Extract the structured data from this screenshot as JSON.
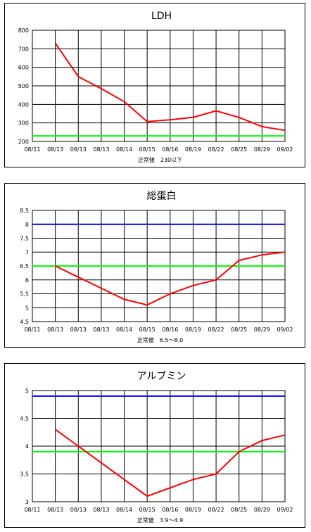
{
  "chart_data": [
    {
      "type": "line",
      "title": "LDH",
      "categories": [
        "08/11",
        "08/13",
        "08/13",
        "08/13",
        "08/14",
        "08/15",
        "08/16",
        "08/19",
        "08/22",
        "08/25",
        "08/29",
        "09/02"
      ],
      "yticks": [
        "800",
        "700",
        "600",
        "500",
        "400",
        "300",
        "200"
      ],
      "ylim": [
        200,
        800
      ],
      "series": [
        {
          "values": [
            null,
            730,
            550,
            485,
            415,
            307,
            317,
            330,
            365,
            330,
            280,
            260
          ],
          "color": "#ff0000"
        }
      ],
      "ref_lines": [
        {
          "value": 230,
          "color": "#00ff00"
        }
      ],
      "note": "正常値　230以下",
      "grid": true
    },
    {
      "type": "line",
      "title": "総蛋白",
      "categories": [
        "08/11",
        "08/13",
        "08/13",
        "08/13",
        "08/14",
        "08/15",
        "08/16",
        "08/19",
        "08/22",
        "08/25",
        "08/29",
        "09/02"
      ],
      "yticks": [
        "8.5",
        "8",
        "7.5",
        "7",
        "6.5",
        "6",
        "5.5",
        "5",
        "4.5"
      ],
      "ylim": [
        4.5,
        8.5
      ],
      "series": [
        {
          "values": [
            null,
            6.5,
            6.1,
            5.7,
            5.3,
            5.1,
            5.5,
            5.8,
            6.0,
            6.7,
            6.9,
            7.0
          ],
          "color": "#ff0000"
        }
      ],
      "ref_lines": [
        {
          "value": 8.0,
          "color": "#0000ff"
        },
        {
          "value": 6.5,
          "color": "#00ff00"
        }
      ],
      "note": "正常値　6.5～8.0",
      "grid": true
    },
    {
      "type": "line",
      "title": "アルブミン",
      "categories": [
        "08/11",
        "08/13",
        "08/13",
        "08/13",
        "08/14",
        "08/15",
        "08/16",
        "08/19",
        "08/22",
        "08/25",
        "08/29",
        "09/02"
      ],
      "yticks": [
        "5",
        "4.5",
        "4",
        "3.5",
        "3"
      ],
      "ylim": [
        3,
        5
      ],
      "series": [
        {
          "values": [
            null,
            4.3,
            4.0,
            3.7,
            3.4,
            3.1,
            3.25,
            3.4,
            3.5,
            3.9,
            4.1,
            4.2
          ],
          "color": "#ff0000"
        }
      ],
      "ref_lines": [
        {
          "value": 4.9,
          "color": "#0000ff"
        },
        {
          "value": 3.9,
          "color": "#00ff00"
        }
      ],
      "note": "正常値　3.9～4.9",
      "grid": true
    }
  ]
}
